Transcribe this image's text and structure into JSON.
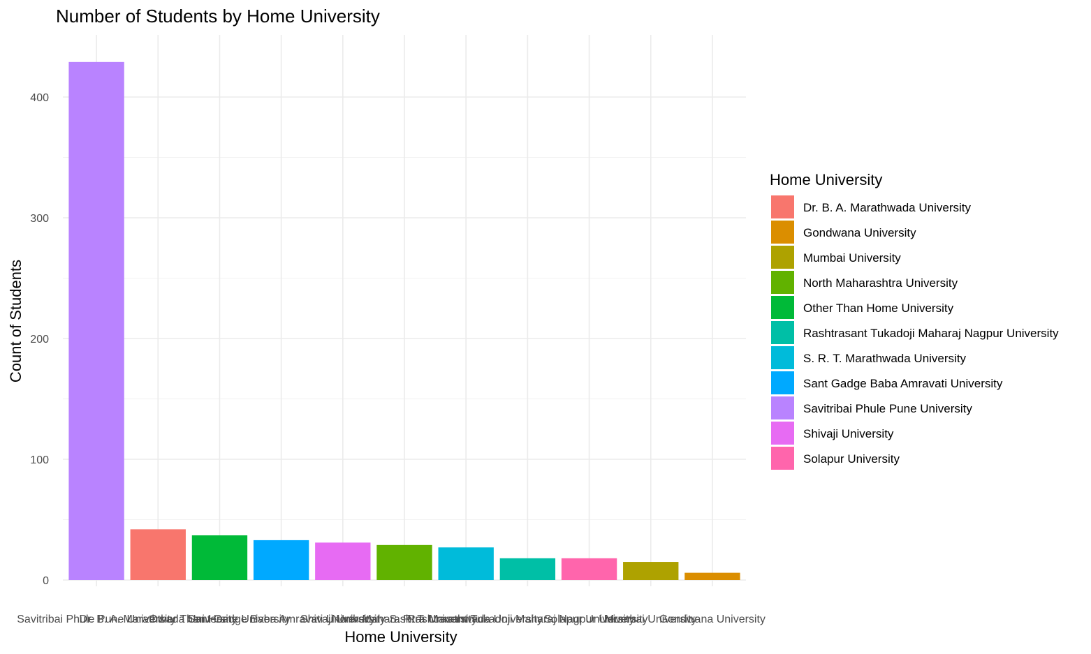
{
  "chart_data": {
    "type": "bar",
    "title": "Number of Students by Home University",
    "xlabel": "Home University",
    "ylabel": "Count of Students",
    "ylim": [
      0,
      450
    ],
    "yticks": [
      0,
      100,
      200,
      300,
      400
    ],
    "grid": true,
    "legend_position": "right",
    "legend_title": "Home University",
    "categories": [
      "Savitribai Phule Pune University",
      "Dr. B. A. Marathwada University",
      "Other Than Home University",
      "Sant Gadge Baba Amravati University",
      "Shivaji University",
      "North Maharashtra University",
      "S. R. T. Marathwada University",
      "Rashtrasant Tukadoji Maharaj Nagpur University",
      "Solapur University",
      "Mumbai University",
      "Gondwana University"
    ],
    "values": [
      429,
      42,
      37,
      33,
      31,
      29,
      27,
      18,
      18,
      15,
      6
    ],
    "bar_colors": [
      "#B983FF",
      "#F8766D",
      "#00BA38",
      "#00A9FF",
      "#E76BF3",
      "#61B200",
      "#00BBDA",
      "#00BFA6",
      "#FF65AC",
      "#AEA200",
      "#DB8E00"
    ],
    "legend": [
      {
        "label": "Dr. B. A. Marathwada University",
        "color": "#F8766D"
      },
      {
        "label": "Gondwana University",
        "color": "#DB8E00"
      },
      {
        "label": "Mumbai University",
        "color": "#AEA200"
      },
      {
        "label": "North Maharashtra University",
        "color": "#61B200"
      },
      {
        "label": "Other Than Home University",
        "color": "#00BA38"
      },
      {
        "label": "Rashtrasant Tukadoji Maharaj Nagpur University",
        "color": "#00BFA6"
      },
      {
        "label": "S. R. T. Marathwada University",
        "color": "#00BBDA"
      },
      {
        "label": "Sant Gadge Baba Amravati University",
        "color": "#00A9FF"
      },
      {
        "label": "Savitribai Phule Pune University",
        "color": "#B983FF"
      },
      {
        "label": "Shivaji University",
        "color": "#E76BF3"
      },
      {
        "label": "Solapur University",
        "color": "#FF65AC"
      }
    ]
  }
}
